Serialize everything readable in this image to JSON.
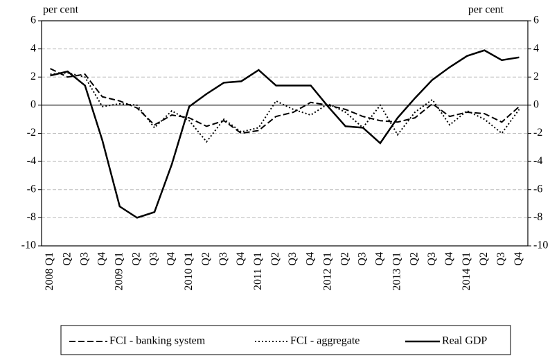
{
  "chart_data": {
    "type": "line",
    "y_label": "per cent",
    "y2_label": "per cent",
    "categories": [
      "2008 Q1",
      "Q2",
      "Q3",
      "Q4",
      "2009 Q1",
      "Q2",
      "Q3",
      "Q4",
      "2010 Q1",
      "Q2",
      "Q3",
      "Q4",
      "2011 Q1",
      "Q2",
      "Q3",
      "Q4",
      "2012 Q1",
      "Q2",
      "Q3",
      "Q4",
      "2013 Q1",
      "Q2",
      "Q3",
      "Q4",
      "2014 Q1",
      "Q2",
      "Q3",
      "Q4"
    ],
    "series": [
      {
        "name": "FCI - banking system",
        "color": "#000000",
        "style": "dashed",
        "values": [
          2.6,
          2.0,
          2.2,
          0.6,
          0.3,
          -0.2,
          -1.4,
          -0.7,
          -0.9,
          -1.5,
          -1.1,
          -2.0,
          -1.8,
          -0.8,
          -0.5,
          0.2,
          0.0,
          -0.3,
          -0.8,
          -1.1,
          -1.2,
          -0.9,
          0.1,
          -0.8,
          -0.5,
          -0.6,
          -1.2,
          -0.1
        ]
      },
      {
        "name": "FCI - aggregate",
        "color": "#000000",
        "style": "dotted",
        "values": [
          2.2,
          2.3,
          2.0,
          -0.1,
          0.1,
          0.0,
          -1.6,
          -0.4,
          -1.1,
          -2.6,
          -1.0,
          -1.9,
          -1.6,
          0.3,
          -0.3,
          -0.7,
          0.1,
          -0.5,
          -1.6,
          0.0,
          -2.1,
          -0.5,
          0.4,
          -1.4,
          -0.4,
          -1.0,
          -2.0,
          -0.3
        ]
      },
      {
        "name": "Real GDP",
        "color": "#000000",
        "style": "solid",
        "values": [
          2.1,
          2.4,
          1.4,
          -2.5,
          -7.2,
          -8.0,
          -7.6,
          -4.2,
          -0.1,
          0.8,
          1.6,
          1.7,
          2.5,
          1.4,
          1.4,
          1.4,
          -0.1,
          -1.5,
          -1.6,
          -2.7,
          -0.9,
          0.5,
          1.8,
          2.7,
          3.5,
          3.9,
          3.2,
          3.4
        ]
      }
    ],
    "ylim": [
      -10,
      6
    ],
    "yticks": [
      -10,
      -8,
      -6,
      -4,
      -2,
      0,
      2,
      4,
      6
    ],
    "y2lim": [
      -10,
      6
    ],
    "y2ticks": [
      -10,
      -8,
      -6,
      -4,
      -2,
      0,
      2,
      4,
      6
    ],
    "grid": true,
    "legend": "bottom"
  }
}
